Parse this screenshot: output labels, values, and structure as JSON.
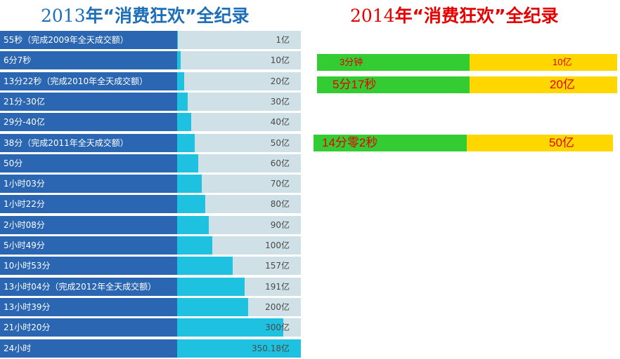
{
  "chart_data": [
    {
      "type": "bar",
      "title": "2013年“消费狂欢”全纪录",
      "title_year": "2013",
      "title_rest": "年“消费狂欢”全纪录",
      "title_color": "#1e6fb8",
      "unit": "亿",
      "xlim": [
        0,
        350.18
      ],
      "categories": [
        "55秒（完成2009年全天成交额）",
        "6分7秒",
        "13分22秒（完成2010年全天成交额）",
        "21分-30亿",
        "29分-40亿",
        "38分（完成2011年全天成交额）",
        "50分",
        "1小时03分",
        "1小时22分",
        "2小时08分",
        "5小时49分",
        "10小时53分",
        "13小时04分（完成2012年全天成交额）",
        "13小时39分",
        "21小时20分",
        "24小时"
      ],
      "values": [
        1,
        10,
        20,
        30,
        40,
        50,
        60,
        70,
        80,
        90,
        100,
        157,
        191,
        200,
        300,
        350.18
      ],
      "value_labels": [
        "1亿",
        "10亿",
        "20亿",
        "30亿",
        "40亿",
        "50亿",
        "60亿",
        "70亿",
        "80亿",
        "90亿",
        "100亿",
        "157亿",
        "191亿",
        "200亿",
        "300亿",
        "350.18亿"
      ],
      "colors": {
        "label_bg": "#2a66b2",
        "track": "#cfe1e6",
        "fill": "#1ec2e0"
      }
    },
    {
      "type": "bar",
      "title": "2014年“消费狂欢”全纪录",
      "title_year": "2014",
      "title_rest": "年“消费狂欢”全纪录",
      "title_color": "#e60000",
      "categories": [
        "3分钟",
        "5分17秒",
        "14分零2秒"
      ],
      "values": [
        10,
        20,
        50
      ],
      "value_labels": [
        "10亿",
        "20亿",
        "50亿"
      ],
      "colors": {
        "time": "#33cc33",
        "amount": "#ffd700",
        "text": "#e60000"
      }
    }
  ]
}
